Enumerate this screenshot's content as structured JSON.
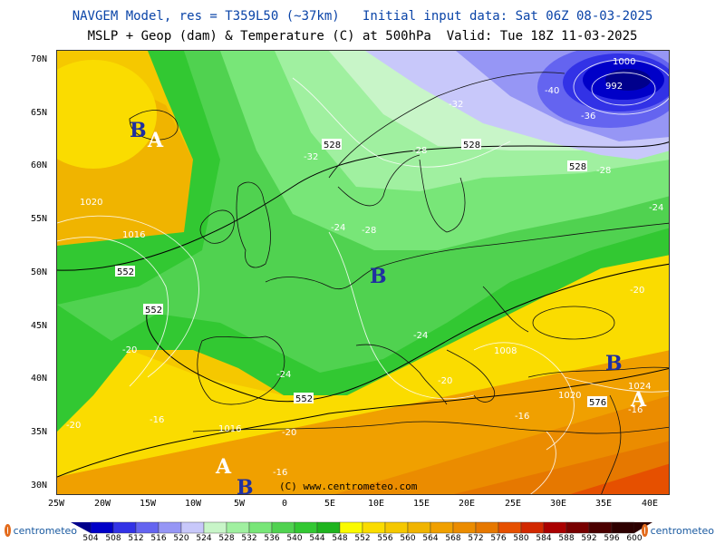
{
  "header": {
    "line1": "NAVGEM Model, res = T359L50 (~37km)   Initial input data: Sat 06Z 08-03-2025",
    "line2": "MSLP + Geop (dam) & Temperature (C) at 500hPa  Valid: Tue 18Z 11-03-2025"
  },
  "axes": {
    "lat_labels": [
      "70N",
      "65N",
      "60N",
      "55N",
      "50N",
      "45N",
      "40N",
      "35N",
      "30N"
    ],
    "lon_labels": [
      "25W",
      "20W",
      "15W",
      "10W",
      "5W",
      "0",
      "5E",
      "10E",
      "15E",
      "20E",
      "25E",
      "30E",
      "35E",
      "40E"
    ]
  },
  "map": {
    "pressure_centers": [
      {
        "type": "B",
        "label": "B"
      },
      {
        "type": "A",
        "label": "A"
      },
      {
        "type": "B",
        "label": "B"
      },
      {
        "type": "B",
        "label": "B"
      },
      {
        "type": "A",
        "label": "A"
      },
      {
        "type": "A",
        "label": "A"
      },
      {
        "type": "B",
        "label": "B"
      }
    ],
    "geop_labels": [
      "528",
      "528",
      "528",
      "552",
      "552",
      "552",
      "576"
    ],
    "temp_labels": [
      "-40",
      "-36",
      "-32",
      "-32",
      "-28",
      "-28",
      "-28",
      "-24",
      "-24",
      "-24",
      "-24",
      "-20",
      "-20",
      "-20",
      "-20",
      "-20",
      "-16",
      "-16",
      "-16",
      "-16"
    ],
    "mslp_labels": [
      "1000",
      "992",
      "1020",
      "1016",
      "1008",
      "1020",
      "1024",
      "1016"
    ],
    "copyright": "(C) www.centrometeo.com"
  },
  "colorbar": {
    "values": [
      "504",
      "508",
      "512",
      "516",
      "520",
      "524",
      "528",
      "532",
      "536",
      "540",
      "544",
      "548",
      "552",
      "556",
      "560",
      "564",
      "568",
      "572",
      "576",
      "580",
      "584",
      "588",
      "592",
      "596",
      "600"
    ],
    "colors": [
      "#00008c",
      "#0000c8",
      "#3232e6",
      "#6464f0",
      "#9696f5",
      "#c8c8fa",
      "#c8f5c8",
      "#a0f0a0",
      "#78e678",
      "#50d250",
      "#32c832",
      "#1eb41e",
      "#fafa00",
      "#fadc00",
      "#f5c800",
      "#f0b400",
      "#f0a000",
      "#eb8c00",
      "#e67800",
      "#e65000",
      "#d22800",
      "#aa0000",
      "#780000",
      "#4b0000",
      "#2d0000"
    ]
  },
  "branding": {
    "logo_text": "centrometeo"
  }
}
